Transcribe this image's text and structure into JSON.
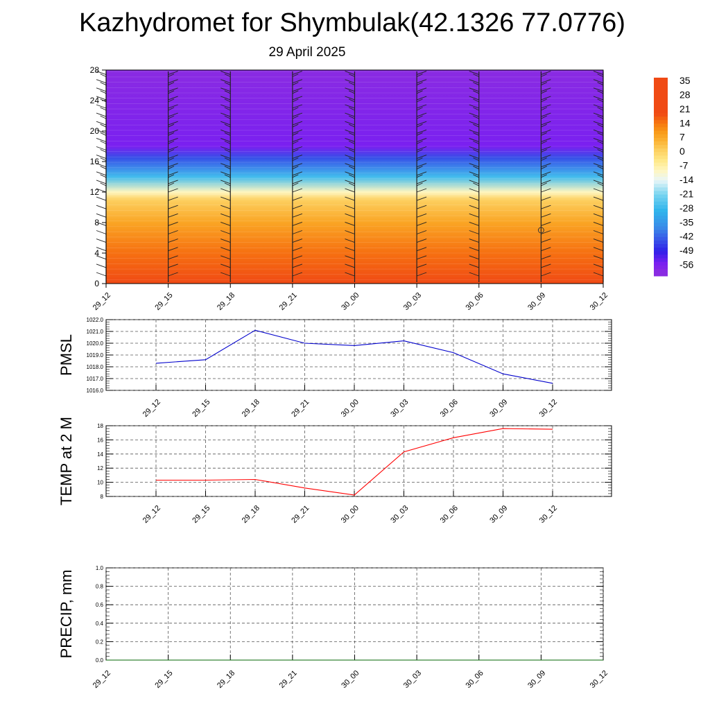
{
  "title": "Kazhydromet for Shymbulak(42.1326 77.0776)",
  "date": "29 April 2025",
  "colorbar": {
    "labels": [
      "35",
      "28",
      "21",
      "14",
      "7",
      "0",
      "-7",
      "-14",
      "-21",
      "-28",
      "-35",
      "-42",
      "-49",
      "-56"
    ],
    "colors": [
      "#f6b8b8",
      "#e8202a",
      "#f03c14",
      "#f6700a",
      "#fbaa1a",
      "#fee070",
      "#fff8c8",
      "#d8f0f8",
      "#50c8f0",
      "#2090e8",
      "#3060e0",
      "#4040f0",
      "#2818e8",
      "#8a2be2"
    ]
  },
  "chart_data": [
    {
      "type": "heatmap",
      "title": "",
      "x_categories": [
        "29_12",
        "29_15",
        "29_18",
        "29_21",
        "30_00",
        "30_03",
        "30_06",
        "30_09",
        "30_12"
      ],
      "y_ticks": [
        "0",
        "4",
        "8",
        "12",
        "16",
        "20",
        "24",
        "28"
      ],
      "ylim": [
        0,
        28
      ],
      "levels": [
        {
          "y": 0,
          "value": 18
        },
        {
          "y": 4,
          "value": 14
        },
        {
          "y": 8,
          "value": 7
        },
        {
          "y": 11,
          "value": 0
        },
        {
          "y": 12,
          "value": -10
        },
        {
          "y": 14,
          "value": -28
        },
        {
          "y": 16.5,
          "value": -45
        },
        {
          "y": 18,
          "value": -56
        },
        {
          "y": 28,
          "value": -60
        }
      ],
      "wind_barbs": true,
      "marker": {
        "x": "30_09",
        "y": 7,
        "symbol": "circle"
      }
    },
    {
      "type": "line",
      "ylabel": "PMSL",
      "x": [
        "29_12",
        "29_15",
        "29_18",
        "29_21",
        "30_00",
        "30_03",
        "30_06",
        "30_09",
        "30_12"
      ],
      "y_ticks": [
        "1016.0",
        "1017.0",
        "1018.0",
        "1019.0",
        "1020.0",
        "1021.0",
        "1022.0"
      ],
      "ylim": [
        1016,
        1022
      ],
      "series": [
        {
          "values": [
            1018.3,
            1018.6,
            1021.1,
            1020.0,
            1019.8,
            1020.2,
            1019.2,
            1017.4,
            1016.6
          ],
          "color": "#0000cc"
        }
      ],
      "grid": true
    },
    {
      "type": "line",
      "ylabel": "TEMP at 2 M",
      "x": [
        "29_12",
        "29_15",
        "29_18",
        "29_21",
        "30_00",
        "30_03",
        "30_06",
        "30_09",
        "30_12"
      ],
      "y_ticks": [
        "8",
        "10",
        "12",
        "14",
        "16",
        "18"
      ],
      "ylim": [
        8,
        18
      ],
      "series": [
        {
          "values": [
            10.3,
            10.3,
            10.4,
            9.2,
            8.2,
            14.3,
            16.3,
            17.6,
            17.5
          ],
          "color": "#ff0000"
        }
      ],
      "grid": true
    },
    {
      "type": "line",
      "ylabel": "PRECIP, mm",
      "x": [
        "29_12",
        "29_15",
        "29_18",
        "29_21",
        "30_00",
        "30_03",
        "30_06",
        "30_09",
        "30_12"
      ],
      "y_ticks": [
        "0.0",
        "0.2",
        "0.4",
        "0.6",
        "0.8",
        "1.0"
      ],
      "ylim": [
        0,
        1
      ],
      "series": [
        {
          "values": [
            0,
            0,
            0,
            0,
            0,
            0,
            0,
            0,
            0
          ],
          "color": "#006400"
        }
      ],
      "grid": true
    }
  ]
}
